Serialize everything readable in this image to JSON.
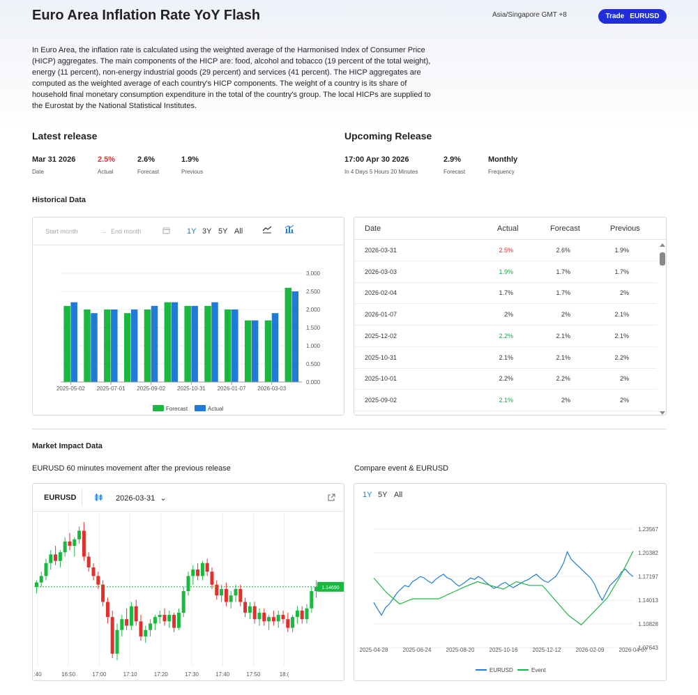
{
  "header": {
    "title": "Euro Area Inflation Rate YoY Flash",
    "timezone": "Asia/Singapore GMT +8",
    "trade_label": "Trade",
    "trade_symbol": "EURUSD"
  },
  "description": "In Euro Area, the inflation rate is calculated using the weighted average of the Harmonised Index of Consumer Price (HICP) aggregates. The main components of the HICP are: food, alcohol and tobacco (19 percent of the total weight), energy (11 percent), non-energy industrial goods (29 percent) and services (41 percent). The HICP aggregates are computed as the weighted average of each country's HICP components. The weight of a country is its share of household final monetary consumption expenditure in the total of the country's group. The local HICPs are supplied to the Eurostat by the National Statistical Institutes.",
  "latest": {
    "title": "Latest release",
    "date": "Mar 31 2026",
    "date_label": "Date",
    "actual": "2.5%",
    "actual_label": "Actual",
    "forecast": "2.6%",
    "forecast_label": "Forecast",
    "previous": "1.9%",
    "previous_label": "Previous"
  },
  "upcoming": {
    "title": "Upcoming Release",
    "time": "17:00 Apr 30 2026",
    "countdown": "In 4 Days 5 Hours 20 Minutes",
    "forecast": "2.9%",
    "forecast_label": "Forecast",
    "frequency": "Monthly",
    "frequency_label": "Frequency"
  },
  "historical": {
    "title": "Historical Data",
    "start_placeholder": "Start month",
    "end_placeholder": "End month",
    "ranges": [
      "1Y",
      "3Y",
      "5Y",
      "All"
    ],
    "active_range": "1Y",
    "table_headers": [
      "Date",
      "Actual",
      "Forecast",
      "Previous"
    ],
    "rows": [
      {
        "date": "2026-03-31",
        "actual": "2.5%",
        "forecast": "2.6%",
        "previous": "1.9%",
        "actual_color": "r"
      },
      {
        "date": "2026-03-03",
        "actual": "1.9%",
        "forecast": "1.7%",
        "previous": "1.7%",
        "actual_color": "g"
      },
      {
        "date": "2026-02-04",
        "actual": "1.7%",
        "forecast": "1.7%",
        "previous": "2%",
        "actual_color": ""
      },
      {
        "date": "2026-01-07",
        "actual": "2%",
        "forecast": "2%",
        "previous": "2.1%",
        "actual_color": ""
      },
      {
        "date": "2025-12-02",
        "actual": "2.2%",
        "forecast": "2.1%",
        "previous": "2.1%",
        "actual_color": "g"
      },
      {
        "date": "2025-10-31",
        "actual": "2.1%",
        "forecast": "2.1%",
        "previous": "2.2%",
        "actual_color": ""
      },
      {
        "date": "2025-10-01",
        "actual": "2.2%",
        "forecast": "2.2%",
        "previous": "2%",
        "actual_color": ""
      },
      {
        "date": "2025-09-02",
        "actual": "2.1%",
        "forecast": "2%",
        "previous": "2%",
        "actual_color": "g"
      }
    ]
  },
  "market": {
    "title": "Market Impact Data",
    "movement_title": "EURUSD 60 minutes movement after the previous release",
    "compare_title": "Compare event & EURUSD",
    "symbol": "EURUSD",
    "release_date": "2026-03-31",
    "price_tag": "1.14690",
    "compare_ranges": [
      "1Y",
      "5Y",
      "All"
    ],
    "compare_active": "1Y"
  },
  "chart_data": [
    {
      "type": "bar",
      "categories": [
        "2025-05-02",
        "2025-06-03",
        "2025-07-01",
        "2025-08-01",
        "2025-09-02",
        "2025-10-01",
        "2025-10-31",
        "2025-12-02",
        "2026-01-07",
        "2026-02-04",
        "2026-03-03",
        "2026-03-31"
      ],
      "x_tick_labels": [
        "2025-05-02",
        "2025-07-01",
        "2025-09-02",
        "2025-10-31",
        "2026-01-07",
        "2026-03-03"
      ],
      "series": [
        {
          "name": "Forecast",
          "color": "#1ab83f",
          "values": [
            2.1,
            2.0,
            2.0,
            1.9,
            2.0,
            2.2,
            2.1,
            2.1,
            2.0,
            1.7,
            1.7,
            2.6
          ]
        },
        {
          "name": "Actual",
          "color": "#1f7bd6",
          "values": [
            2.2,
            1.9,
            2.0,
            2.0,
            2.1,
            2.2,
            2.1,
            2.2,
            2.0,
            1.7,
            1.9,
            2.5
          ]
        }
      ],
      "y_ticks": [
        "0.000",
        "0.500",
        "1.000",
        "1.500",
        "2.000",
        "2.500",
        "3.000"
      ],
      "ylim": [
        0,
        3
      ],
      "legend": "bottom"
    },
    {
      "type": "candlestick",
      "x_tick_labels": [
        ":40",
        "16:50",
        "17:00",
        "17:10",
        "17:20",
        "17:30",
        "17:40",
        "17:50",
        "18:("
      ],
      "candles": [
        [
          1.1469,
          1.1472,
          1.1466,
          1.1471
        ],
        [
          1.1471,
          1.1476,
          1.1469,
          1.1474
        ],
        [
          1.1474,
          1.1482,
          1.1472,
          1.148
        ],
        [
          1.148,
          1.1486,
          1.1477,
          1.1484
        ],
        [
          1.1484,
          1.1488,
          1.1479,
          1.1481
        ],
        [
          1.1481,
          1.1486,
          1.1478,
          1.1485
        ],
        [
          1.1485,
          1.1492,
          1.1483,
          1.149
        ],
        [
          1.149,
          1.1494,
          1.1486,
          1.1488
        ],
        [
          1.1488,
          1.1492,
          1.1483,
          1.1491
        ],
        [
          1.1491,
          1.1497,
          1.1489,
          1.1495
        ],
        [
          1.1495,
          1.1499,
          1.1481,
          1.1483
        ],
        [
          1.1483,
          1.1485,
          1.1476,
          1.1478
        ],
        [
          1.1478,
          1.148,
          1.1472,
          1.1474
        ],
        [
          1.1474,
          1.1476,
          1.1468,
          1.147
        ],
        [
          1.147,
          1.1472,
          1.146,
          1.1462
        ],
        [
          1.1462,
          1.1464,
          1.1452,
          1.1455
        ],
        [
          1.1455,
          1.1458,
          1.1436,
          1.1438
        ],
        [
          1.1438,
          1.1452,
          1.1435,
          1.1449
        ],
        [
          1.1449,
          1.1456,
          1.1446,
          1.1454
        ],
        [
          1.1454,
          1.1459,
          1.1449,
          1.1451
        ],
        [
          1.1451,
          1.1462,
          1.1449,
          1.146
        ],
        [
          1.146,
          1.1463,
          1.1451,
          1.1453
        ],
        [
          1.1453,
          1.1456,
          1.1444,
          1.1446
        ],
        [
          1.1446,
          1.1451,
          1.1443,
          1.1449
        ],
        [
          1.1449,
          1.1454,
          1.1446,
          1.1452
        ],
        [
          1.1452,
          1.1456,
          1.1449,
          1.1455
        ],
        [
          1.1455,
          1.1458,
          1.1452,
          1.1456
        ],
        [
          1.1456,
          1.1459,
          1.1451,
          1.1453
        ],
        [
          1.1453,
          1.1458,
          1.145,
          1.1456
        ],
        [
          1.1456,
          1.1457,
          1.1448,
          1.145
        ],
        [
          1.145,
          1.1459,
          1.1449,
          1.1457
        ],
        [
          1.1457,
          1.1469,
          1.1455,
          1.1467
        ],
        [
          1.1467,
          1.1476,
          1.1465,
          1.1474
        ],
        [
          1.1474,
          1.1479,
          1.147,
          1.1477
        ],
        [
          1.1477,
          1.148,
          1.1472,
          1.1474
        ],
        [
          1.1474,
          1.1481,
          1.1472,
          1.148
        ],
        [
          1.148,
          1.1482,
          1.1474,
          1.1476
        ],
        [
          1.1476,
          1.1478,
          1.1468,
          1.147
        ],
        [
          1.147,
          1.1472,
          1.1463,
          1.1465
        ],
        [
          1.1465,
          1.147,
          1.1462,
          1.1468
        ],
        [
          1.1468,
          1.1471,
          1.146,
          1.1462
        ],
        [
          1.1462,
          1.1467,
          1.1459,
          1.1465
        ],
        [
          1.1465,
          1.147,
          1.1462,
          1.1468
        ],
        [
          1.1468,
          1.147,
          1.146,
          1.1462
        ],
        [
          1.1462,
          1.1464,
          1.1455,
          1.1457
        ],
        [
          1.1457,
          1.1462,
          1.1454,
          1.146
        ],
        [
          1.146,
          1.1462,
          1.1452,
          1.1454
        ],
        [
          1.1454,
          1.1459,
          1.1451,
          1.1457
        ],
        [
          1.1457,
          1.1459,
          1.1451,
          1.1453
        ],
        [
          1.1453,
          1.1456,
          1.1449,
          1.1455
        ],
        [
          1.1455,
          1.1458,
          1.1451,
          1.1453
        ],
        [
          1.1453,
          1.1458,
          1.145,
          1.1456
        ],
        [
          1.1456,
          1.1458,
          1.1452,
          1.1454
        ],
        [
          1.1454,
          1.1457,
          1.1448,
          1.145
        ],
        [
          1.145,
          1.1456,
          1.1448,
          1.1455
        ],
        [
          1.1455,
          1.146,
          1.1452,
          1.1458
        ],
        [
          1.1458,
          1.146,
          1.1452,
          1.1454
        ],
        [
          1.1454,
          1.1461,
          1.1452,
          1.1459
        ],
        [
          1.1459,
          1.1469,
          1.1457,
          1.1467
        ],
        [
          1.1467,
          1.1472,
          1.1464,
          1.1469
        ]
      ],
      "last_price": 1.1469
    },
    {
      "type": "line",
      "x_tick_labels": [
        "2025-04-28",
        "2025-06-24",
        "2025-08-20",
        "2025-10-16",
        "2025-12-12",
        "2026-02-09",
        "2026-04-07"
      ],
      "y_ticks": [
        "1.07643",
        "1.10828",
        "1.14013",
        "1.17197",
        "1.20382",
        "1.23567"
      ],
      "ylim": [
        1.07643,
        1.23567
      ],
      "series": [
        {
          "name": "EURUSD",
          "color": "#1f7bd6",
          "values": [
            1.137,
            1.128,
            1.12,
            1.13,
            1.135,
            1.142,
            1.15,
            1.155,
            1.16,
            1.158,
            1.165,
            1.168,
            1.172,
            1.17,
            1.166,
            1.163,
            1.168,
            1.172,
            1.175,
            1.17,
            1.168,
            1.163,
            1.159,
            1.162,
            1.166,
            1.17,
            1.168,
            1.172,
            1.169,
            1.164,
            1.16,
            1.156,
            1.158,
            1.162,
            1.164,
            1.16,
            1.157,
            1.16,
            1.163,
            1.166,
            1.168,
            1.172,
            1.175,
            1.17,
            1.166,
            1.164,
            1.168,
            1.172,
            1.18,
            1.19,
            1.205,
            1.195,
            1.19,
            1.185,
            1.18,
            1.175,
            1.17,
            1.162,
            1.15,
            1.14,
            1.15,
            1.16,
            1.165,
            1.17,
            1.178,
            1.182,
            1.176,
            1.172
          ]
        },
        {
          "name": "Event",
          "color": "#1ab83f",
          "values": [
            1.17,
            1.15,
            1.135,
            1.142,
            1.142,
            1.142,
            1.15,
            1.158,
            1.165,
            1.16,
            1.155,
            1.165,
            1.16,
            1.16,
            1.14,
            1.12,
            1.107,
            1.125,
            1.143,
            1.172,
            1.206
          ]
        }
      ],
      "legend": "bottom"
    }
  ]
}
